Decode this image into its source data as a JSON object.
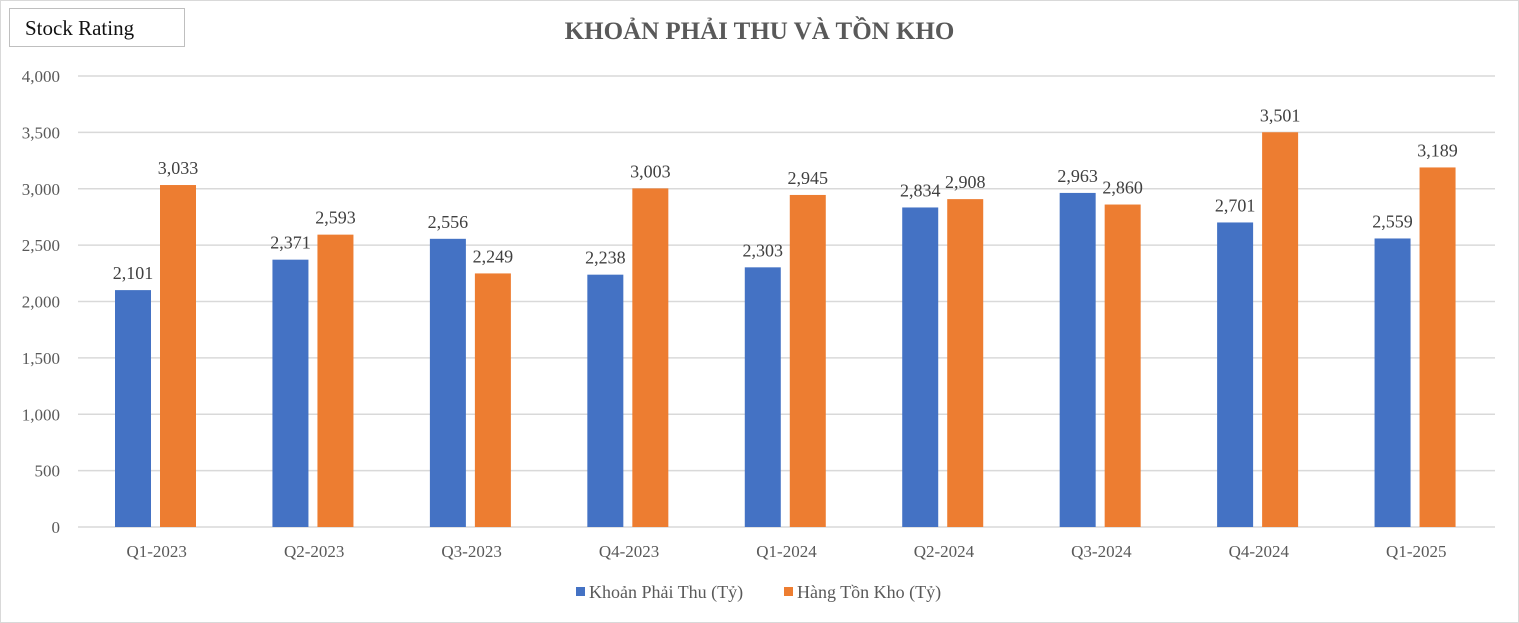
{
  "badge": "Stock Rating",
  "chart_data": {
    "type": "bar",
    "title": "KHOẢN PHẢI THU VÀ TỒN KHO",
    "categories": [
      "Q1-2023",
      "Q2-2023",
      "Q3-2023",
      "Q4-2023",
      "Q1-2024",
      "Q2-2024",
      "Q3-2024",
      "Q4-2024",
      "Q1-2025"
    ],
    "series": [
      {
        "name": "Khoản Phải Thu (Tỷ)",
        "color": "#4472C4",
        "values": [
          2101,
          2371,
          2556,
          2238,
          2303,
          2834,
          2963,
          2701,
          2559
        ]
      },
      {
        "name": "Hàng Tồn Kho (Tỷ)",
        "color": "#ED7D31",
        "values": [
          3033,
          2593,
          2249,
          3003,
          2945,
          2908,
          2860,
          3501,
          3189
        ]
      }
    ],
    "ylim": [
      0,
      4000
    ],
    "yticks": [
      0,
      500,
      1000,
      1500,
      2000,
      2500,
      3000,
      3500,
      4000
    ],
    "grid": true,
    "legend": "bottom",
    "data_labels": true
  }
}
